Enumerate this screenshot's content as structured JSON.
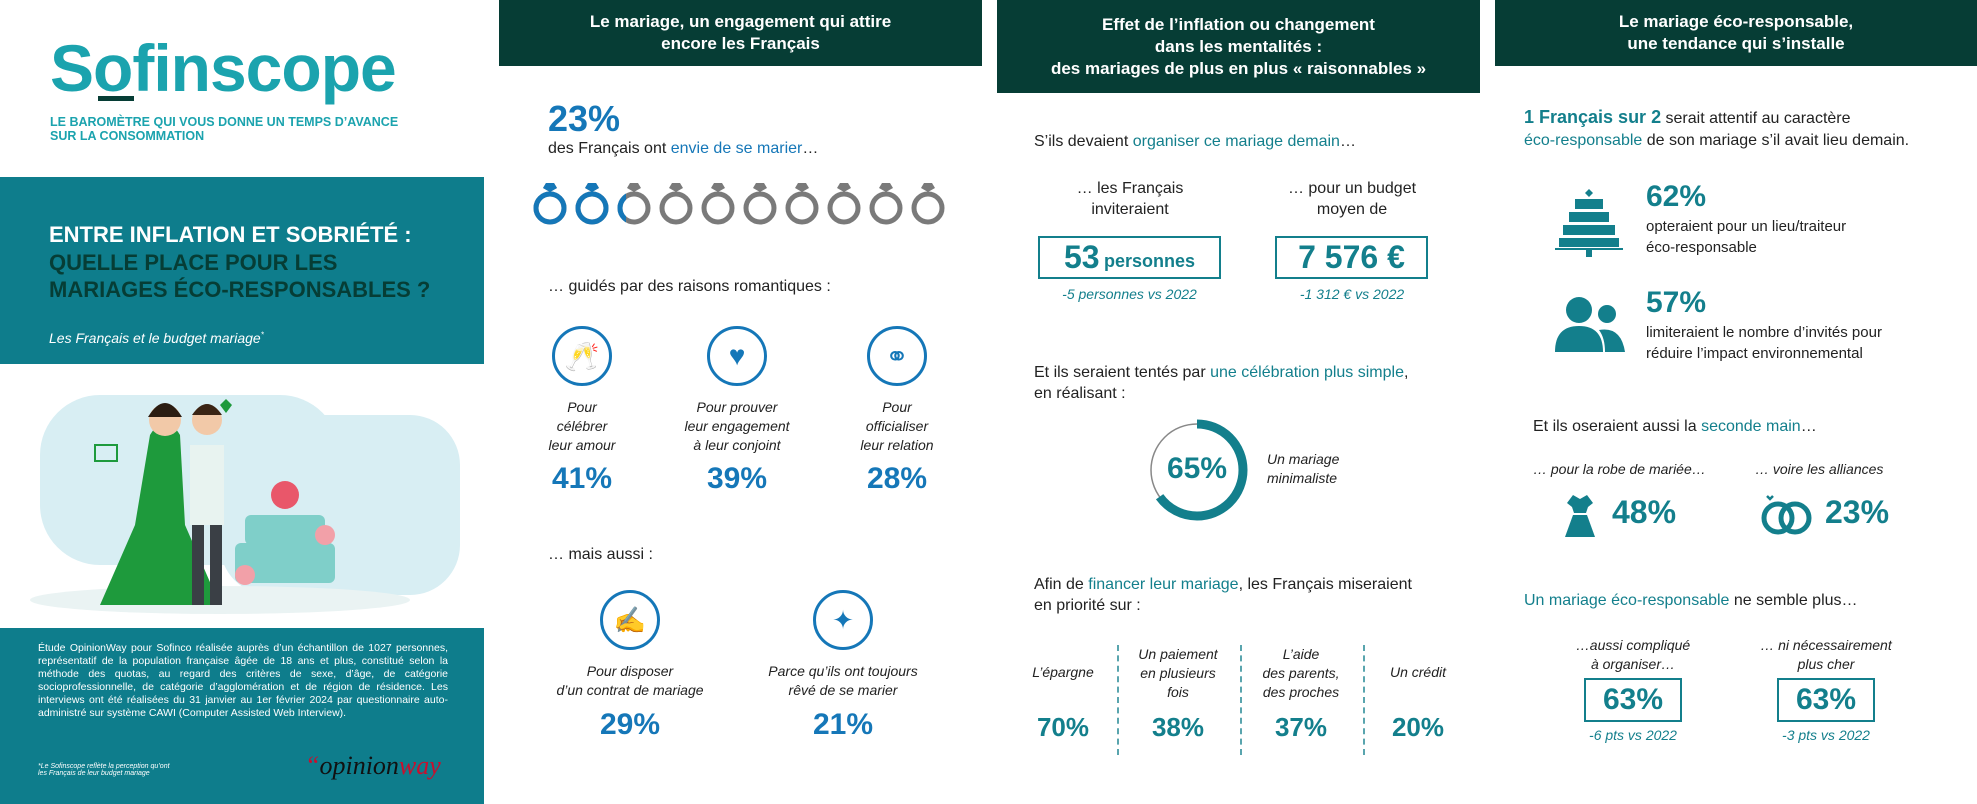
{
  "colors": {
    "teal": "#137f8c",
    "blue": "#1577b8",
    "dark_green": "#063d35",
    "panel": "#0e7d8c",
    "red": "#c8102e",
    "grey": "#7a7a7a"
  },
  "left": {
    "logo": "Sofinscope",
    "tagline": "LE BAROMÈTRE QUI VOUS DONNE UN TEMPS D’AVANCE\nSUR LA CONSOMMATION",
    "title_line1": "ENTRE INFLATION ET SOBRIÉTÉ :",
    "title_line2": "QUELLE PLACE POUR LES\nMARIAGES ÉCO-RESPONSABLES ?",
    "subtitle": "Les Français et le budget mariage",
    "subtitle_mark": "*",
    "methodology": "Étude OpinionWay pour Sofinco réalisée auprès d’un échantillon de 1027 personnes, représentatif de la population française âgée de 18 ans et plus, constitué selon la méthode des quotas, au regard des critères de sexe, d’âge, de catégorie socioprofessionnelle, de catégorie d’agglomération et de région de résidence. Les interviews ont été réalisées du 31 janvier au 1er février 2024 par questionnaire auto-administré sur système CAWI (Computer Assisted Web Interview).",
    "footnote": "*Le Sofinscope reflète la perception qu’ont\nles Français de leur budget mariage",
    "partner_logo_a": "opinion",
    "partner_logo_b": "way"
  },
  "col1": {
    "header": "Le mariage, un engagement qui attire\nencore les Français",
    "stat": "23%",
    "stat_value": 23,
    "stat_text_a": "des Français ont ",
    "stat_text_hl": "envie de se marier",
    "stat_text_b": "…",
    "rings_total": 10,
    "romantic_intro": "… guidés par des raisons romantiques :",
    "reasons": [
      {
        "icon": "champagne-toast-icon",
        "label": "Pour\ncélébrer\nleur amour",
        "value": "41%"
      },
      {
        "icon": "heart-icon",
        "label": "Pour prouver\nleur engagement\nà leur conjoint",
        "value": "39%"
      },
      {
        "icon": "wedding-couple-icon",
        "label": "Pour\nofficialiser\nleur relation",
        "value": "28%"
      }
    ],
    "also_intro": "… mais aussi :",
    "also": [
      {
        "icon": "contract-signature-icon",
        "label": "Pour disposer\nd’un contrat de mariage",
        "value": "29%"
      },
      {
        "icon": "sparkles-icon",
        "label": "Parce qu’ils ont toujours\nrêvé de se marier",
        "value": "21%"
      }
    ]
  },
  "col2": {
    "header": "Effet de l’inflation ou changement\ndans les mentalités :\ndes mariages de plus en plus « raisonnables »",
    "intro_a": "S’ils devaient ",
    "intro_hl": "organiser ce mariage demain",
    "intro_b": "…",
    "guests_label": "… les Français\ninviteraient",
    "guests_value": "53",
    "guests_unit": "personnes",
    "guests_delta": "-5  personnes vs 2022",
    "budget_label": "… pour un budget\nmoyen de",
    "budget_value": "7 576 €",
    "budget_delta": "-1 312 € vs 2022",
    "simple_a": "Et ils seraient tentés par ",
    "simple_hl": "une célébration plus simple",
    "simple_b": ",\nen réalisant :",
    "donut_value": "65%",
    "donut_percent": 65,
    "donut_label": "Un mariage\nminimaliste",
    "finance_a": "Afin de ",
    "finance_hl": "financer leur mariage",
    "finance_b": ", les Français miseraient\nen priorité sur :",
    "finance": [
      {
        "label": "L’épargne",
        "value": "70%"
      },
      {
        "label": "Un paiement\nen plusieurs\nfois",
        "value": "38%"
      },
      {
        "label": "L’aide\ndes parents,\ndes proches",
        "value": "37%"
      },
      {
        "label": "Un crédit",
        "value": "20%"
      }
    ]
  },
  "col3": {
    "header": "Le mariage éco-responsable,\nune tendance qui s’installe",
    "lead_bold": "1 Français sur 2",
    "lead_a": " serait attentif au caractère",
    "lead_hl": "éco-responsable",
    "lead_b": " de son mariage s’il avait lieu demain.",
    "stats": [
      {
        "icon": "wedding-cake-icon",
        "value": "62%",
        "text": "opteraient pour un lieu/traiteur\néco-responsable"
      },
      {
        "icon": "people-icon",
        "value": "57%",
        "text": "limiteraient le nombre d’invités pour\nréduire l’impact environnemental"
      }
    ],
    "second_a": "Et ils oseraient aussi la ",
    "second_hl": "seconde main",
    "second_b": "…",
    "dress_label": "… pour la robe de mariée…",
    "dress_value": "48%",
    "rings_label": "… voire les alliances",
    "rings_value": "23%",
    "eco_hl": "Un mariage éco-responsable",
    "eco_b": " ne semble plus…",
    "eco": [
      {
        "label": "…aussi compliqué\nà organiser…",
        "value": "63%",
        "delta": "-6 pts vs 2022"
      },
      {
        "label": "… ni nécessairement\nplus cher",
        "value": "63%",
        "delta": "-3 pts vs 2022"
      }
    ]
  }
}
